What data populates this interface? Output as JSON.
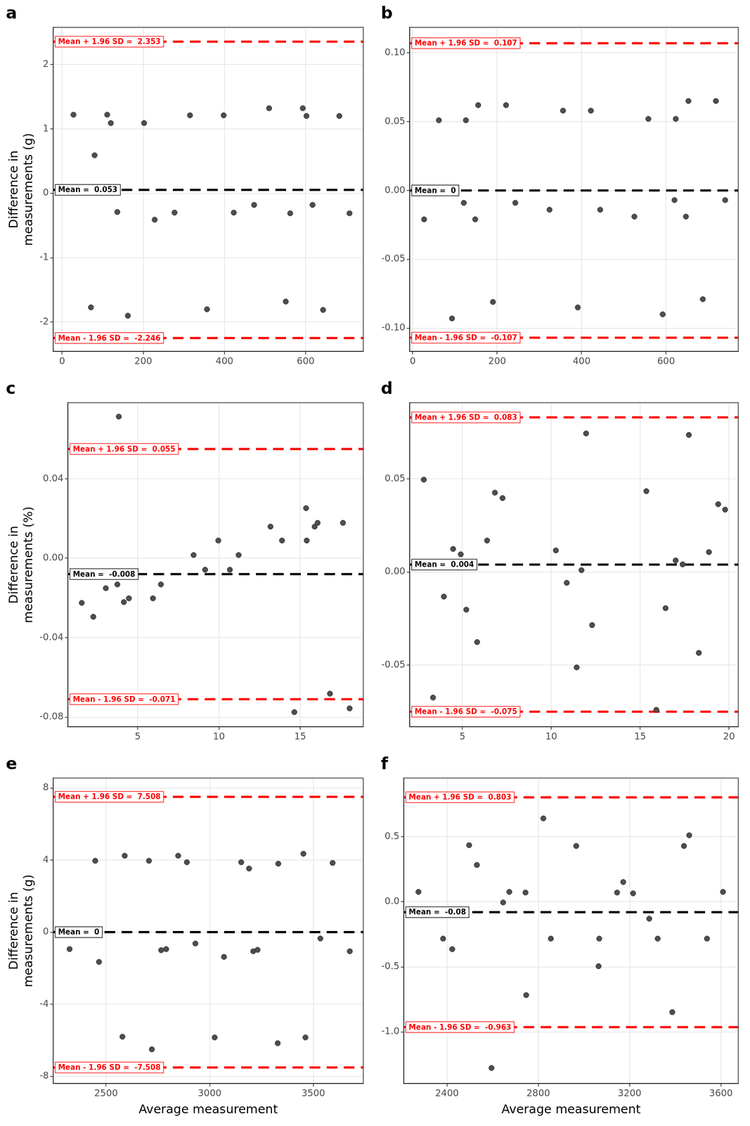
{
  "chart_data": [
    {
      "type": "scatter",
      "title": "a",
      "y_label": "Difference in\nmeasurements (g)",
      "x": [
        28,
        80,
        111,
        120,
        136,
        71,
        162,
        202,
        228,
        277,
        315,
        357,
        398,
        423,
        473,
        510,
        551,
        562,
        593,
        602,
        617,
        643,
        683,
        708
      ],
      "values": [
        1.22,
        0.59,
        1.22,
        1.09,
        -0.29,
        -1.77,
        -1.9,
        1.09,
        -0.41,
        -0.3,
        1.21,
        -1.8,
        1.21,
        -0.3,
        -0.18,
        1.32,
        -1.68,
        -0.31,
        1.32,
        1.2,
        -0.18,
        -1.81,
        1.2,
        -0.31
      ],
      "color": "#4d4d4d",
      "marker": "circle",
      "xlim": [
        -22,
        742
      ],
      "xticks": [
        0,
        200,
        400,
        600
      ],
      "ylim": [
        -2.455,
        2.575
      ],
      "yticks": [
        -2,
        -1,
        0,
        1,
        2
      ],
      "grid": true,
      "reference_lines": [
        {
          "value": 2.353,
          "label": "Mean + 1.96 SD =  2.353",
          "color": "#ff0000",
          "line_style": "dashed"
        },
        {
          "value": 0.053,
          "label": "Mean =  0.053",
          "color": "#000000",
          "line_style": "dashed"
        },
        {
          "value": -2.246,
          "label": "Mean - 1.96 SD =  -2.246",
          "color": "#ff0000",
          "line_style": "dashed"
        }
      ]
    },
    {
      "type": "scatter",
      "title": "b",
      "x": [
        27,
        62,
        93,
        121,
        126,
        148,
        155,
        190,
        221,
        243,
        324,
        356,
        391,
        422,
        444,
        525,
        558,
        592,
        623,
        620,
        647,
        653,
        687,
        718,
        740
      ],
      "values": [
        -0.021,
        0.051,
        -0.093,
        -0.009,
        0.051,
        -0.021,
        0.062,
        -0.081,
        0.062,
        -0.009,
        -0.014,
        0.058,
        -0.085,
        0.058,
        -0.014,
        -0.019,
        0.052,
        -0.09,
        0.052,
        -0.007,
        -0.019,
        0.065,
        -0.079,
        0.065,
        -0.007
      ],
      "color": "#4d4d4d",
      "marker": "circle",
      "xlim": [
        -7,
        771
      ],
      "xticks": [
        0,
        200,
        400,
        600
      ],
      "ylim": [
        -0.117,
        0.1185
      ],
      "yticks": [
        {
          "value": -0.1,
          "label": "-0.10"
        },
        -0.05,
        {
          "value": 0,
          "label": "0.00"
        },
        0.05,
        {
          "value": 0.1,
          "label": "0.10"
        }
      ],
      "grid": true,
      "reference_lines": [
        {
          "value": 0.107,
          "label": "Mean + 1.96 SD =  0.107",
          "color": "#ff0000",
          "line_style": "dashed"
        },
        {
          "value": 0,
          "label": "Mean =  0",
          "color": "#000000",
          "line_style": "dashed"
        },
        {
          "value": -0.107,
          "label": "Mean - 1.96 SD =  -0.107",
          "color": "#ff0000",
          "line_style": "dashed"
        }
      ]
    },
    {
      "type": "scatter",
      "title": "c",
      "y_label": "Difference in\nmeasurements (%)",
      "x": [
        1.56,
        2.27,
        3.04,
        3.75,
        3.84,
        4.15,
        4.46,
        5.94,
        6.43,
        8.44,
        9.15,
        9.96,
        10.67,
        11.21,
        13.17,
        13.88,
        14.64,
        15.36,
        15.4,
        15.89,
        16.07,
        16.83,
        17.63,
        18.04
      ],
      "values": [
        -0.0225,
        -0.0295,
        -0.0151,
        -0.0132,
        0.0713,
        -0.0221,
        -0.0202,
        -0.0202,
        -0.0132,
        0.0016,
        -0.0058,
        0.0089,
        -0.0058,
        0.0016,
        0.0159,
        0.0089,
        -0.0775,
        0.0252,
        0.0089,
        0.0159,
        0.0178,
        -0.0682,
        0.0178,
        -0.0756
      ],
      "color": "#4d4d4d",
      "marker": "circle",
      "xlim": [
        0.71,
        18.88
      ],
      "xticks": [
        5,
        10,
        15
      ],
      "ylim": [
        -0.0849,
        0.0783
      ],
      "yticks": [
        -0.08,
        -0.04,
        {
          "value": 0,
          "label": "0.00"
        },
        0.04
      ],
      "grid": true,
      "reference_lines": [
        {
          "value": 0.055,
          "label": "Mean + 1.96 SD =  0.055",
          "color": "#ff0000",
          "line_style": "dashed"
        },
        {
          "value": -0.008,
          "label": "Mean =  -0.008",
          "color": "#000000",
          "line_style": "dashed"
        },
        {
          "value": -0.071,
          "label": "Mean - 1.96 SD =  -0.071",
          "color": "#ff0000",
          "line_style": "dashed"
        }
      ]
    },
    {
      "type": "scatter",
      "title": "d",
      "x": [
        2.83,
        3.35,
        3.96,
        4.48,
        4.91,
        5.22,
        5.83,
        6.39,
        6.83,
        7.26,
        10.26,
        10.87,
        11.43,
        11.7,
        11.96,
        12.3,
        15.35,
        15.91,
        16.43,
        17.0,
        17.39,
        17.74,
        18.3,
        18.87,
        19.39,
        19.78
      ],
      "values": [
        0.0496,
        -0.0674,
        -0.0132,
        0.0124,
        0.0095,
        -0.0202,
        -0.0376,
        0.0169,
        0.0426,
        0.0397,
        0.0116,
        -0.0058,
        -0.0512,
        0.001,
        0.0744,
        -0.0285,
        0.0434,
        -0.074,
        -0.0194,
        0.0062,
        0.0041,
        0.0736,
        -0.0434,
        0.0107,
        0.0364,
        0.0335
      ],
      "color": "#4d4d4d",
      "marker": "circle",
      "xlim": [
        2.04,
        20.52
      ],
      "xticks": [
        5,
        10,
        15,
        20
      ],
      "ylim": [
        -0.0831,
        0.0909
      ],
      "yticks": [
        -0.05,
        {
          "value": 0,
          "label": "0.00"
        },
        0.05
      ],
      "grid": true,
      "reference_lines": [
        {
          "value": 0.083,
          "label": "Mean + 1.96 SD =  0.083",
          "color": "#ff0000",
          "line_style": "dashed"
        },
        {
          "value": 0.004,
          "label": "Mean =  0.004",
          "color": "#000000",
          "line_style": "dashed"
        },
        {
          "value": -0.075,
          "label": "Mean - 1.96 SD =  -0.075",
          "color": "#ff0000",
          "line_style": "dashed"
        }
      ]
    },
    {
      "type": "scatter",
      "title": "e",
      "y_label": "Difference in\nmeasurements (g)",
      "x_label": "Average measurement",
      "x": [
        2324,
        2448,
        2466,
        2579,
        2590,
        2707,
        2721,
        2766,
        2790,
        2848,
        2890,
        2931,
        3024,
        3069,
        3152,
        3190,
        3210,
        3231,
        3331,
        3328,
        3452,
        3462,
        3534,
        3593,
        3676
      ],
      "values": [
        -0.94,
        3.96,
        -1.65,
        -5.8,
        4.24,
        3.96,
        -6.5,
        -1.0,
        -0.94,
        4.24,
        3.88,
        -0.63,
        -5.84,
        -1.37,
        3.88,
        3.53,
        -1.06,
        -0.98,
        3.8,
        -6.16,
        4.35,
        -5.84,
        -0.35,
        3.84,
        -1.06
      ],
      "color": "#4d4d4d",
      "marker": "circle",
      "xlim": [
        2245,
        3741
      ],
      "xticks": [
        2500,
        3000,
        3500
      ],
      "ylim": [
        -8.4,
        8.55
      ],
      "yticks": [
        -8,
        -4,
        0,
        4,
        8
      ],
      "grid": true,
      "reference_lines": [
        {
          "value": 7.508,
          "label": "Mean + 1.96 SD =  7.508",
          "color": "#ff0000",
          "line_style": "dashed"
        },
        {
          "value": 0,
          "label": "Mean =  0",
          "color": "#000000",
          "line_style": "dashed"
        },
        {
          "value": -7.508,
          "label": "Mean - 1.96 SD =  -7.508",
          "color": "#ff0000",
          "line_style": "dashed"
        }
      ]
    },
    {
      "type": "scatter",
      "title": "f",
      "x_label": "Average measurement",
      "x": [
        2275,
        2383,
        2423,
        2497,
        2531,
        2595,
        2646,
        2673,
        2747,
        2744,
        2822,
        2855,
        2966,
        3064,
        3067,
        3145,
        3172,
        3215,
        3286,
        3323,
        3387,
        3438,
        3461,
        3539,
        3609
      ],
      "values": [
        0.076,
        -0.283,
        -0.364,
        0.435,
        0.283,
        -1.277,
        -0.005,
        0.076,
        -0.717,
        0.071,
        0.641,
        -0.283,
        0.429,
        -0.495,
        -0.283,
        0.071,
        0.152,
        0.065,
        -0.13,
        -0.283,
        -0.848,
        0.429,
        0.511,
        -0.283,
        0.076
      ],
      "color": "#4d4d4d",
      "marker": "circle",
      "xlim": [
        2211,
        3676
      ],
      "xticks": [
        2400,
        2800,
        3200,
        3600
      ],
      "ylim": [
        -1.397,
        0.951
      ],
      "yticks": [
        {
          "value": -1,
          "label": "-1.0"
        },
        -0.5,
        {
          "value": 0,
          "label": "0.0"
        },
        0.5
      ],
      "grid": true,
      "reference_lines": [
        {
          "value": 0.803,
          "label": "Mean + 1.96 SD =  0.803",
          "color": "#ff0000",
          "line_style": "dashed"
        },
        {
          "value": -0.08,
          "label": "Mean =  -0.08",
          "color": "#000000",
          "line_style": "dashed"
        },
        {
          "value": -0.963,
          "label": "Mean - 1.96 SD =  -0.963",
          "color": "#ff0000",
          "line_style": "dashed"
        }
      ]
    }
  ]
}
